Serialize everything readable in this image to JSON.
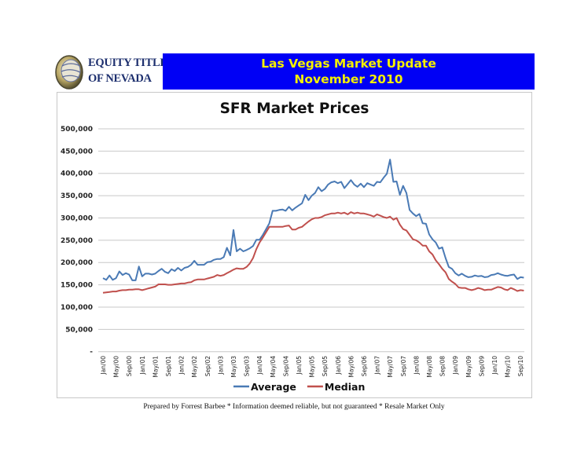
{
  "header": {
    "logo_line1": "EQUITY TITLE",
    "logo_line2": "OF NEVADA",
    "banner_line1": "Las Vegas Market Update",
    "banner_line2": "November 2010",
    "banner_bg": "#0000f5",
    "banner_fg": "#f4f000"
  },
  "footer": "Prepared by Forrest Barbee * Information deemed reliable, but not guaranteed * Resale Market Only",
  "chart_data": {
    "type": "line",
    "title": "SFR Market Prices",
    "xlabel": "",
    "ylabel": "",
    "ylim": [
      0,
      500000
    ],
    "y_ticks": [
      0,
      50000,
      100000,
      150000,
      200000,
      250000,
      300000,
      350000,
      400000,
      450000,
      500000
    ],
    "y_tick_labels": [
      "-",
      "50,000",
      "100,000",
      "150,000",
      "200,000",
      "250,000",
      "300,000",
      "350,000",
      "400,000",
      "450,000",
      "500,000"
    ],
    "x_start": "Jan/00",
    "x_end": "Oct/10",
    "x_interval": "monthly",
    "x_tick_labels": [
      "Jan/00",
      "May/00",
      "Sep/00",
      "Jan/01",
      "May/01",
      "Sep/01",
      "Jan/02",
      "May/02",
      "Sep/02",
      "Jan/03",
      "May/03",
      "Sep/03",
      "Jan/04",
      "May/04",
      "Sep/04",
      "Jan/05",
      "May/05",
      "Sep/05",
      "Jan/06",
      "May/06",
      "Sep/06",
      "Jan/07",
      "May/07",
      "Sep/07",
      "Jan/08",
      "May/08",
      "Sep/08",
      "Jan/09",
      "May/09",
      "Sep/09",
      "Jan/10",
      "May/10",
      "Sep/10"
    ],
    "grid": true,
    "legend_position": "bottom",
    "series": [
      {
        "name": "Average",
        "color": "#4a7ab5",
        "values": [
          165,
          161,
          171,
          161,
          165,
          180,
          172,
          176,
          173,
          160,
          160,
          191,
          169,
          175,
          175,
          173,
          175,
          181,
          186,
          179,
          176,
          185,
          181,
          188,
          182,
          188,
          190,
          195,
          204,
          195,
          195,
          195,
          201,
          202,
          206,
          208,
          208,
          212,
          233,
          216,
          273,
          225,
          231,
          225,
          228,
          232,
          237,
          251,
          251,
          262,
          275,
          288,
          316,
          316,
          318,
          319,
          316,
          325,
          317,
          323,
          328,
          333,
          352,
          340,
          350,
          356,
          369,
          360,
          365,
          375,
          380,
          382,
          378,
          381,
          367,
          376,
          385,
          375,
          370,
          377,
          369,
          378,
          375,
          372,
          381,
          380,
          390,
          399,
          431,
          381,
          382,
          352,
          372,
          356,
          318,
          310,
          304,
          309,
          288,
          287,
          263,
          252,
          245,
          231,
          234,
          210,
          190,
          186,
          176,
          171,
          175,
          170,
          167,
          168,
          171,
          169,
          170,
          167,
          168,
          172,
          173,
          176,
          173,
          171,
          170,
          172,
          173,
          163,
          167,
          166
        ]
      },
      {
        "name": "Median",
        "color": "#c0504d",
        "values": [
          132,
          133,
          134,
          135,
          135,
          137,
          138,
          138,
          139,
          139,
          140,
          140,
          138,
          140,
          142,
          144,
          146,
          151,
          151,
          151,
          150,
          150,
          151,
          152,
          153,
          153,
          155,
          156,
          160,
          162,
          162,
          162,
          164,
          166,
          168,
          172,
          170,
          172,
          176,
          180,
          184,
          187,
          186,
          186,
          190,
          198,
          210,
          230,
          245,
          256,
          268,
          280,
          280,
          280,
          280,
          280,
          282,
          283,
          274,
          274,
          278,
          280,
          286,
          292,
          297,
          300,
          300,
          302,
          306,
          308,
          310,
          310,
          312,
          310,
          312,
          308,
          313,
          310,
          312,
          310,
          310,
          308,
          306,
          303,
          308,
          305,
          302,
          300,
          303,
          296,
          300,
          285,
          275,
          272,
          262,
          252,
          250,
          245,
          238,
          238,
          225,
          218,
          205,
          196,
          186,
          178,
          163,
          157,
          152,
          144,
          143,
          143,
          140,
          138,
          140,
          143,
          141,
          138,
          139,
          139,
          142,
          145,
          144,
          140,
          138,
          143,
          140,
          136,
          138,
          137
        ]
      }
    ],
    "values_unit_multiplier": 1000
  }
}
